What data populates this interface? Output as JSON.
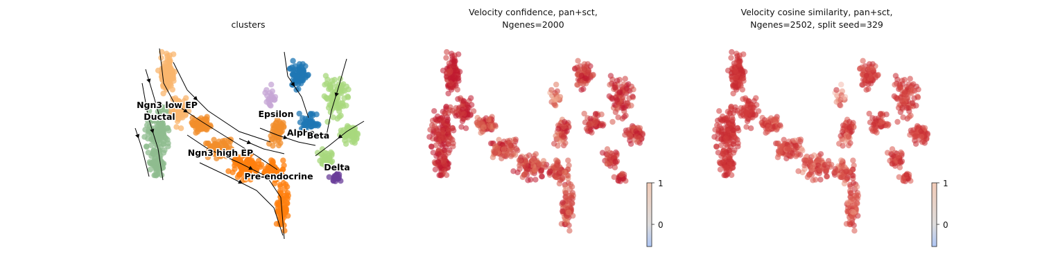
{
  "chart_data": [
    {
      "type": "scatter",
      "title": "clusters",
      "style": "embedding scatter with velocity streamlines, categorical colors",
      "clusters": [
        {
          "name": "Ngn3 low EP",
          "color": "#f9b66e"
        },
        {
          "name": "Ductal",
          "color": "#8fbc8f"
        },
        {
          "name": "Ngn3 high EP",
          "color": "#f28e2b"
        },
        {
          "name": "Pre-endocrine",
          "color": "#ff7f0e"
        },
        {
          "name": "Epsilon",
          "color": "#c5a5d6"
        },
        {
          "name": "Alpha",
          "color": "#1f77b4"
        },
        {
          "name": "Beta",
          "color": "#a8d87d"
        },
        {
          "name": "Delta",
          "color": "#6a3d9a"
        }
      ],
      "labels": [
        {
          "name": "Ngn3 low EP",
          "text": "Ngn3 low EP"
        },
        {
          "name": "Ductal",
          "text": "Ductal"
        },
        {
          "name": "Epsilon",
          "text": "Epsilon"
        },
        {
          "name": "Alpha",
          "text": "Alpha"
        },
        {
          "name": "Beta",
          "text": "Beta"
        },
        {
          "name": "Ngn3 high EP",
          "text": "Ngn3 high EP"
        },
        {
          "name": "Delta",
          "text": "Delta"
        },
        {
          "name": "Pre-endocrine",
          "text": "Pre-endocrine"
        }
      ],
      "grid": false
    },
    {
      "type": "scatter",
      "title": "Velocity confidence, pan+sct,\nNgenes=2000",
      "title_lines": [
        "Velocity confidence, pan+sct,",
        "Ngenes=2000"
      ],
      "colormap": "coolwarm",
      "colorbar": {
        "ticks": [
          "1",
          "0"
        ],
        "range_top": "1"
      },
      "cell_colors": [
        "#c0192f",
        "#cc3a3a",
        "#d6584a",
        "#e0785e",
        "#f0a990"
      ],
      "grid": false
    },
    {
      "type": "scatter",
      "title": "Velocity cosine similarity, pan+sct,\nNgenes=2502, split seed=329",
      "title_lines": [
        "Velocity cosine similarity, pan+sct,",
        "Ngenes=2502, split seed=329"
      ],
      "colormap": "coolwarm",
      "colorbar": {
        "ticks": [
          "1",
          "0"
        ],
        "range_top": "1"
      },
      "cell_colors": [
        "#c62a32",
        "#cf3b3b",
        "#d9564d",
        "#e98f7c",
        "#f4b9ad"
      ],
      "grid": false
    }
  ]
}
